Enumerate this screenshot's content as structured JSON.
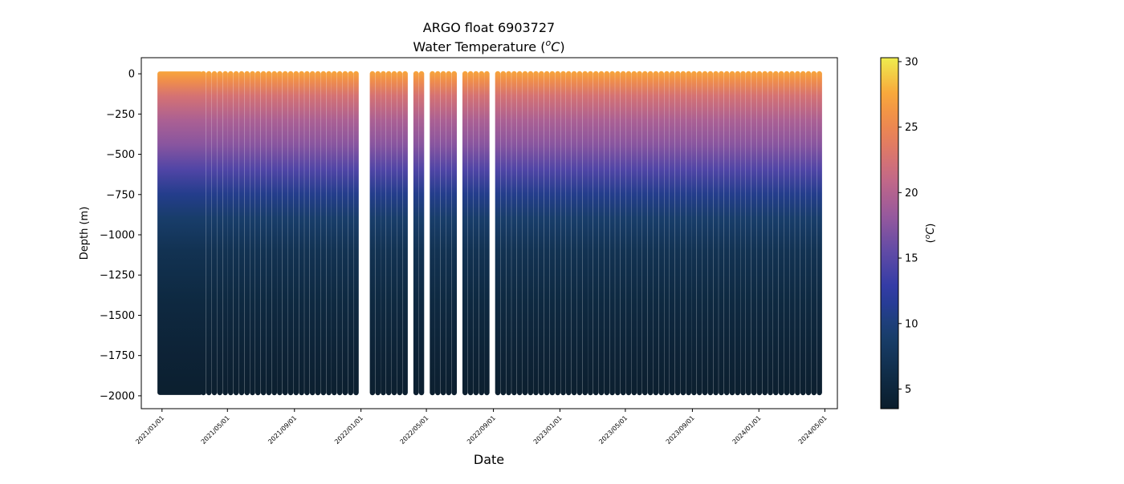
{
  "chart_data": {
    "type": "scatter",
    "title": "ARGO float 6903727",
    "subtitle_prefix": "Water Temperature (",
    "subtitle_sup": "o",
    "subtitle_unit": "C",
    "subtitle_suffix": ")",
    "xlabel": "Date",
    "ylabel": "Depth (m)",
    "colorbar_label_prefix": "(",
    "colorbar_label_sup": "o",
    "colorbar_label_unit": "C",
    "colorbar_label_suffix": ")",
    "xlim": [
      "2020-11-24",
      "2024-05-24"
    ],
    "ylim": [
      -2080,
      100
    ],
    "x_ticks": [
      "2021/01/01",
      "2021/05/01",
      "2021/09/01",
      "2022/01/01",
      "2022/05/01",
      "2022/09/01",
      "2023/01/01",
      "2023/05/01",
      "2023/09/01",
      "2024/01/01",
      "2024/05/01"
    ],
    "y_ticks": [
      0,
      -250,
      -500,
      -750,
      -1000,
      -1250,
      -1500,
      -1750,
      -2000
    ],
    "y_tick_labels": [
      "0",
      "−250",
      "−500",
      "−750",
      "−1000",
      "−1250",
      "−1500",
      "−1750",
      "−2000"
    ],
    "colorbar_range": [
      3.5,
      30.3
    ],
    "colorbar_ticks": [
      5,
      10,
      15,
      20,
      25,
      30
    ],
    "colormap_stops": [
      "#0b1d2c",
      "#102f4c",
      "#1a4070",
      "#2d3aa6",
      "#5f4aa6",
      "#9a5a9c",
      "#c86a84",
      "#e98058",
      "#f9a23a",
      "#eeed4e"
    ],
    "profile_depth_m": -1980,
    "dense_segment_dates": [
      "2020-12-28",
      "2021-03-12"
    ],
    "profile_dates": [
      "2021-03-18",
      "2021-03-28",
      "2021-04-07",
      "2021-04-17",
      "2021-04-27",
      "2021-05-07",
      "2021-05-17",
      "2021-05-27",
      "2021-06-06",
      "2021-06-16",
      "2021-06-26",
      "2021-07-06",
      "2021-07-16",
      "2021-07-26",
      "2021-08-05",
      "2021-08-15",
      "2021-08-25",
      "2021-09-04",
      "2021-09-14",
      "2021-09-24",
      "2021-10-04",
      "2021-10-14",
      "2021-10-24",
      "2021-11-03",
      "2021-11-13",
      "2021-11-23",
      "2021-12-03",
      "2021-12-13",
      "2021-12-23",
      "2022-01-22",
      "2022-02-01",
      "2022-02-11",
      "2022-02-21",
      "2022-03-03",
      "2022-03-13",
      "2022-03-23",
      "2022-04-12",
      "2022-04-22",
      "2022-05-12",
      "2022-05-22",
      "2022-06-01",
      "2022-06-11",
      "2022-06-21",
      "2022-07-11",
      "2022-07-21",
      "2022-07-31",
      "2022-08-10",
      "2022-08-20",
      "2022-09-09",
      "2022-09-19",
      "2022-09-29",
      "2022-10-09",
      "2022-10-19",
      "2022-10-29",
      "2022-11-08",
      "2022-11-18",
      "2022-11-28",
      "2022-12-08",
      "2022-12-18",
      "2022-12-28",
      "2023-01-07",
      "2023-01-17",
      "2023-01-27",
      "2023-02-06",
      "2023-02-16",
      "2023-02-26",
      "2023-03-08",
      "2023-03-18",
      "2023-03-28",
      "2023-04-07",
      "2023-04-17",
      "2023-04-27",
      "2023-05-07",
      "2023-05-17",
      "2023-05-27",
      "2023-06-06",
      "2023-06-16",
      "2023-06-26",
      "2023-07-06",
      "2023-07-16",
      "2023-07-26",
      "2023-08-05",
      "2023-08-15",
      "2023-08-25",
      "2023-09-04",
      "2023-09-14",
      "2023-09-24",
      "2023-10-04",
      "2023-10-14",
      "2023-10-24",
      "2023-11-03",
      "2023-11-13",
      "2023-11-23",
      "2023-12-03",
      "2023-12-13",
      "2023-12-23",
      "2024-01-02",
      "2024-01-12",
      "2024-01-22",
      "2024-02-01",
      "2024-02-11",
      "2024-02-21",
      "2024-03-02",
      "2024-03-12",
      "2024-03-22",
      "2024-04-01",
      "2024-04-11",
      "2024-04-21"
    ],
    "temperature_profile": [
      {
        "depth": 0,
        "temp": 27.5
      },
      {
        "depth": -60,
        "temp": 25.5
      },
      {
        "depth": -150,
        "temp": 22.5
      },
      {
        "depth": -300,
        "temp": 19.5
      },
      {
        "depth": -450,
        "temp": 17.5
      },
      {
        "depth": -600,
        "temp": 14.5
      },
      {
        "depth": -750,
        "temp": 11.0
      },
      {
        "depth": -900,
        "temp": 9.0
      },
      {
        "depth": -1100,
        "temp": 7.0
      },
      {
        "depth": -1400,
        "temp": 5.5
      },
      {
        "depth": -1700,
        "temp": 4.5
      },
      {
        "depth": -2000,
        "temp": 3.8
      }
    ],
    "grid": false,
    "legend": "none"
  }
}
